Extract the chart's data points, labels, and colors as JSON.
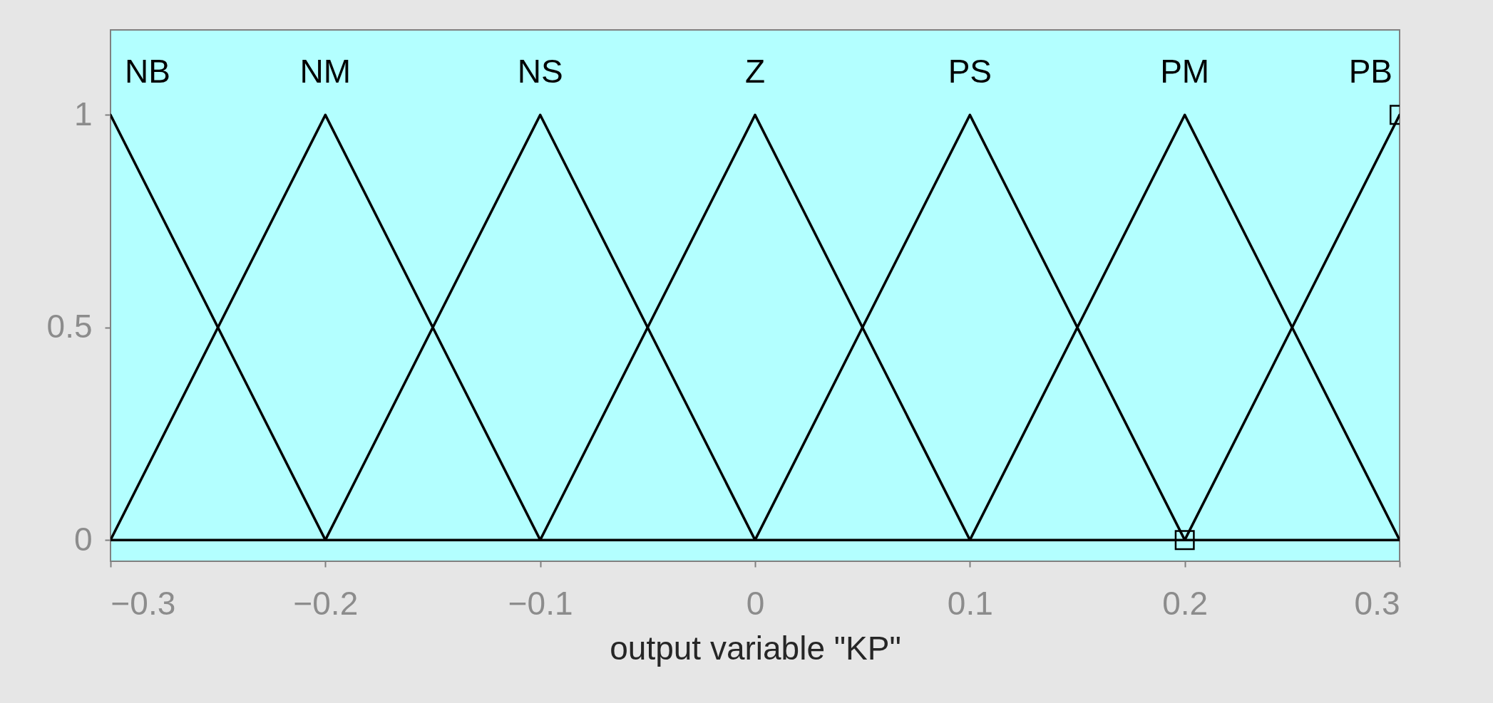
{
  "chart_data": {
    "type": "line",
    "xlabel": "output variable \"KP\"",
    "xlim": [
      -0.3,
      0.3
    ],
    "xticks": [
      -0.3,
      -0.2,
      -0.1,
      0,
      0.1,
      0.2,
      0.3
    ],
    "ylim": [
      -0.05,
      1.2
    ],
    "yticks": [
      0,
      0.5,
      1
    ],
    "marker": "none",
    "line_style": "solid",
    "ref_lines": [
      {
        "axis": "y",
        "value": 0,
        "color": "#000000"
      }
    ],
    "series": [
      {
        "name": "NB",
        "color": "#000000",
        "x": [
          -0.3,
          -0.2
        ],
        "values": [
          1,
          0
        ]
      },
      {
        "name": "NM",
        "color": "#000000",
        "x": [
          -0.3,
          -0.2,
          -0.1
        ],
        "values": [
          0,
          1,
          0
        ]
      },
      {
        "name": "NS",
        "color": "#000000",
        "x": [
          -0.2,
          -0.1,
          0
        ],
        "values": [
          0,
          1,
          0
        ]
      },
      {
        "name": "Z",
        "color": "#000000",
        "x": [
          -0.1,
          0,
          0.1
        ],
        "values": [
          0,
          1,
          0
        ]
      },
      {
        "name": "PS",
        "color": "#000000",
        "x": [
          0,
          0.1,
          0.2
        ],
        "values": [
          0,
          1,
          0
        ]
      },
      {
        "name": "PM",
        "color": "#000000",
        "x": [
          0.1,
          0.2,
          0.3
        ],
        "values": [
          0,
          1,
          0
        ]
      },
      {
        "name": "PB",
        "color": "#000000",
        "x": [
          0.2,
          0.3
        ],
        "values": [
          0,
          1
        ],
        "marker": "square"
      }
    ]
  }
}
